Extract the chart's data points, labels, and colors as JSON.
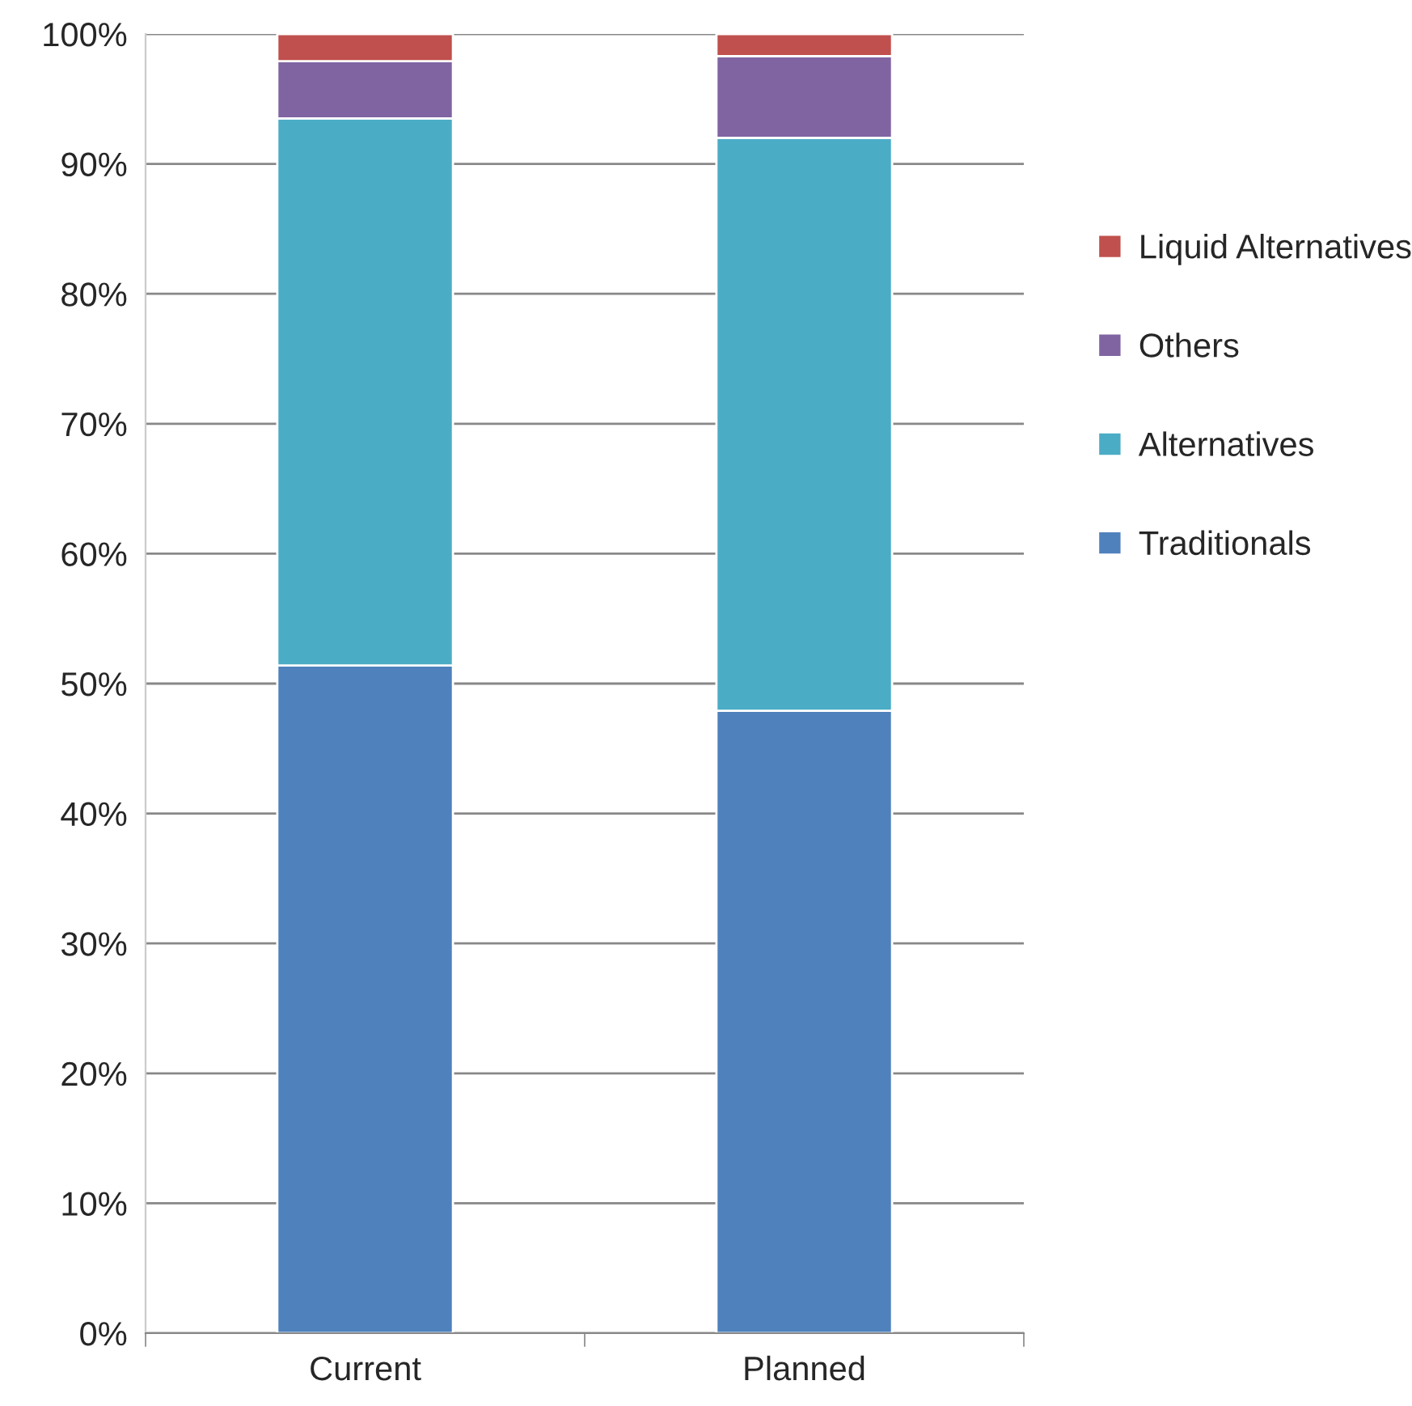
{
  "chart_data": {
    "type": "bar",
    "stacked": true,
    "categories": [
      "Current",
      "Planned"
    ],
    "series": [
      {
        "name": "Traditionals",
        "color": "#4f81bd",
        "values": [
          51.4,
          47.9
        ]
      },
      {
        "name": "Alternatives",
        "color": "#4bacc6",
        "values": [
          42.1,
          44.1
        ]
      },
      {
        "name": "Others",
        "color": "#8064a2",
        "values": [
          4.4,
          6.3
        ]
      },
      {
        "name": "Liquid Alternatives",
        "color": "#c0504d",
        "values": [
          2.1,
          1.7
        ]
      }
    ],
    "ylim": [
      0,
      100
    ],
    "yticks": [
      {
        "value": 0,
        "label": "0%"
      },
      {
        "value": 10,
        "label": "10%"
      },
      {
        "value": 20,
        "label": "20%"
      },
      {
        "value": 30,
        "label": "30%"
      },
      {
        "value": 40,
        "label": "40%"
      },
      {
        "value": 50,
        "label": "50%"
      },
      {
        "value": 60,
        "label": "60%"
      },
      {
        "value": 70,
        "label": "70%"
      },
      {
        "value": 80,
        "label": "80%"
      },
      {
        "value": 90,
        "label": "90%"
      },
      {
        "value": 100,
        "label": "100%"
      }
    ],
    "grid": "y",
    "legend": "right"
  }
}
